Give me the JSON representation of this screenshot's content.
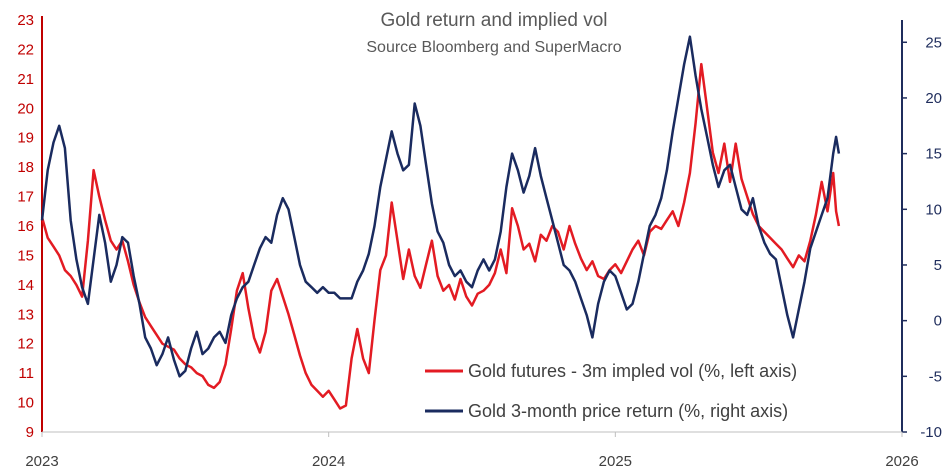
{
  "chart_data": {
    "type": "line",
    "title": "Gold return and implied vol",
    "subtitle": "Source Bloomberg and SuperMacro",
    "colors": {
      "vol": "#e31b23",
      "ret": "#1a2b5f",
      "left_axis": "#c00000",
      "right_axis": "#1f2d5c",
      "text": "#595959"
    },
    "x_axis": {
      "ticks": [
        "2023",
        "2024",
        "2025",
        "2026"
      ],
      "range": [
        2023.0,
        2026.0
      ]
    },
    "left_axis": {
      "ticks": [
        "9",
        "10",
        "11",
        "12",
        "13",
        "14",
        "15",
        "16",
        "17",
        "18",
        "19",
        "20",
        "21",
        "22",
        "23"
      ],
      "range": [
        9,
        23
      ]
    },
    "right_axis": {
      "ticks": [
        "-10",
        "-5",
        "0",
        "5",
        "10",
        "15",
        "20",
        "25"
      ],
      "range": [
        -10,
        27
      ]
    },
    "legend": [
      {
        "label": "Gold futures - 3m impled vol (%, left axis)",
        "color": "#e31b23"
      },
      {
        "label": "Gold 3-month price return (%, right axis)",
        "color": "#1a2b5f"
      }
    ],
    "legend_position": "bottom-right",
    "series": [
      {
        "name": "Gold futures - 3m impled vol (%, left axis)",
        "axis": "left",
        "points": [
          [
            2023.0,
            16.3
          ],
          [
            2023.02,
            15.6
          ],
          [
            2023.04,
            15.3
          ],
          [
            2023.06,
            15.0
          ],
          [
            2023.08,
            14.5
          ],
          [
            2023.1,
            14.3
          ],
          [
            2023.12,
            14.0
          ],
          [
            2023.14,
            13.6
          ],
          [
            2023.16,
            15.5
          ],
          [
            2023.18,
            17.9
          ],
          [
            2023.2,
            17.0
          ],
          [
            2023.22,
            16.2
          ],
          [
            2023.24,
            15.5
          ],
          [
            2023.26,
            15.2
          ],
          [
            2023.28,
            15.5
          ],
          [
            2023.3,
            14.8
          ],
          [
            2023.32,
            14.0
          ],
          [
            2023.34,
            13.4
          ],
          [
            2023.36,
            12.9
          ],
          [
            2023.38,
            12.6
          ],
          [
            2023.4,
            12.3
          ],
          [
            2023.42,
            12.0
          ],
          [
            2023.44,
            11.9
          ],
          [
            2023.46,
            11.8
          ],
          [
            2023.48,
            11.5
          ],
          [
            2023.5,
            11.3
          ],
          [
            2023.52,
            11.2
          ],
          [
            2023.54,
            11.0
          ],
          [
            2023.56,
            10.9
          ],
          [
            2023.58,
            10.6
          ],
          [
            2023.6,
            10.5
          ],
          [
            2023.62,
            10.7
          ],
          [
            2023.64,
            11.3
          ],
          [
            2023.66,
            12.5
          ],
          [
            2023.68,
            13.8
          ],
          [
            2023.7,
            14.4
          ],
          [
            2023.72,
            13.2
          ],
          [
            2023.74,
            12.2
          ],
          [
            2023.76,
            11.7
          ],
          [
            2023.78,
            12.4
          ],
          [
            2023.8,
            13.8
          ],
          [
            2023.82,
            14.2
          ],
          [
            2023.84,
            13.6
          ],
          [
            2023.86,
            13.0
          ],
          [
            2023.88,
            12.3
          ],
          [
            2023.9,
            11.6
          ],
          [
            2023.92,
            11.0
          ],
          [
            2023.94,
            10.6
          ],
          [
            2023.96,
            10.4
          ],
          [
            2023.98,
            10.2
          ],
          [
            2024.0,
            10.4
          ],
          [
            2024.02,
            10.1
          ],
          [
            2024.04,
            9.8
          ],
          [
            2024.06,
            9.9
          ],
          [
            2024.08,
            11.5
          ],
          [
            2024.1,
            12.5
          ],
          [
            2024.12,
            11.5
          ],
          [
            2024.14,
            11.0
          ],
          [
            2024.16,
            12.8
          ],
          [
            2024.18,
            14.5
          ],
          [
            2024.2,
            15.0
          ],
          [
            2024.22,
            16.8
          ],
          [
            2024.24,
            15.5
          ],
          [
            2024.26,
            14.2
          ],
          [
            2024.28,
            15.2
          ],
          [
            2024.3,
            14.3
          ],
          [
            2024.32,
            13.9
          ],
          [
            2024.34,
            14.7
          ],
          [
            2024.36,
            15.5
          ],
          [
            2024.38,
            14.3
          ],
          [
            2024.4,
            13.8
          ],
          [
            2024.42,
            14.0
          ],
          [
            2024.44,
            13.5
          ],
          [
            2024.46,
            14.2
          ],
          [
            2024.48,
            13.6
          ],
          [
            2024.5,
            13.3
          ],
          [
            2024.52,
            13.7
          ],
          [
            2024.54,
            13.8
          ],
          [
            2024.56,
            14.0
          ],
          [
            2024.58,
            14.4
          ],
          [
            2024.6,
            15.2
          ],
          [
            2024.62,
            14.4
          ],
          [
            2024.64,
            16.6
          ],
          [
            2024.66,
            16.0
          ],
          [
            2024.68,
            15.2
          ],
          [
            2024.7,
            15.4
          ],
          [
            2024.72,
            14.8
          ],
          [
            2024.74,
            15.7
          ],
          [
            2024.76,
            15.5
          ],
          [
            2024.78,
            16.0
          ],
          [
            2024.8,
            15.8
          ],
          [
            2024.82,
            15.2
          ],
          [
            2024.84,
            16.0
          ],
          [
            2024.86,
            15.4
          ],
          [
            2024.88,
            14.9
          ],
          [
            2024.9,
            14.5
          ],
          [
            2024.92,
            14.8
          ],
          [
            2024.94,
            14.3
          ],
          [
            2024.96,
            14.2
          ],
          [
            2024.98,
            14.5
          ],
          [
            2025.0,
            14.7
          ],
          [
            2025.02,
            14.4
          ],
          [
            2025.04,
            14.8
          ],
          [
            2025.06,
            15.2
          ],
          [
            2025.08,
            15.5
          ],
          [
            2025.1,
            15.0
          ],
          [
            2025.12,
            15.8
          ],
          [
            2025.14,
            16.0
          ],
          [
            2025.16,
            15.9
          ],
          [
            2025.18,
            16.2
          ],
          [
            2025.2,
            16.5
          ],
          [
            2025.22,
            16.0
          ],
          [
            2025.24,
            16.8
          ],
          [
            2025.26,
            17.8
          ],
          [
            2025.28,
            19.5
          ],
          [
            2025.3,
            21.5
          ],
          [
            2025.32,
            20.0
          ],
          [
            2025.34,
            18.5
          ],
          [
            2025.36,
            17.8
          ],
          [
            2025.38,
            18.8
          ],
          [
            2025.4,
            17.5
          ],
          [
            2025.42,
            18.8
          ],
          [
            2025.44,
            17.6
          ],
          [
            2025.46,
            17.0
          ],
          [
            2025.48,
            16.4
          ],
          [
            2025.5,
            16.0
          ],
          [
            2025.52,
            15.8
          ],
          [
            2025.54,
            15.6
          ],
          [
            2025.56,
            15.4
          ],
          [
            2025.58,
            15.2
          ],
          [
            2025.6,
            14.9
          ],
          [
            2025.62,
            14.6
          ],
          [
            2025.64,
            15.0
          ],
          [
            2025.66,
            14.8
          ],
          [
            2025.68,
            15.5
          ],
          [
            2025.7,
            16.4
          ],
          [
            2025.72,
            17.5
          ],
          [
            2025.74,
            16.5
          ],
          [
            2025.76,
            17.8
          ],
          [
            2025.77,
            16.5
          ],
          [
            2025.78,
            16.0
          ]
        ]
      },
      {
        "name": "Gold 3-month price return (%, right axis)",
        "axis": "right",
        "points": [
          [
            2023.0,
            9.0
          ],
          [
            2023.02,
            13.5
          ],
          [
            2023.04,
            16.0
          ],
          [
            2023.06,
            17.5
          ],
          [
            2023.08,
            15.5
          ],
          [
            2023.1,
            9.0
          ],
          [
            2023.12,
            5.5
          ],
          [
            2023.14,
            3.0
          ],
          [
            2023.16,
            1.5
          ],
          [
            2023.18,
            5.5
          ],
          [
            2023.2,
            9.5
          ],
          [
            2023.22,
            7.0
          ],
          [
            2023.24,
            3.5
          ],
          [
            2023.26,
            5.0
          ],
          [
            2023.28,
            7.5
          ],
          [
            2023.3,
            7.0
          ],
          [
            2023.32,
            4.0
          ],
          [
            2023.34,
            1.5
          ],
          [
            2023.36,
            -1.5
          ],
          [
            2023.38,
            -2.5
          ],
          [
            2023.4,
            -4.0
          ],
          [
            2023.42,
            -3.0
          ],
          [
            2023.44,
            -1.5
          ],
          [
            2023.46,
            -3.5
          ],
          [
            2023.48,
            -5.0
          ],
          [
            2023.5,
            -4.5
          ],
          [
            2023.52,
            -2.5
          ],
          [
            2023.54,
            -1.0
          ],
          [
            2023.56,
            -3.0
          ],
          [
            2023.58,
            -2.5
          ],
          [
            2023.6,
            -1.5
          ],
          [
            2023.62,
            -1.0
          ],
          [
            2023.64,
            -2.0
          ],
          [
            2023.66,
            0.5
          ],
          [
            2023.68,
            2.0
          ],
          [
            2023.7,
            3.0
          ],
          [
            2023.72,
            3.5
          ],
          [
            2023.74,
            5.0
          ],
          [
            2023.76,
            6.5
          ],
          [
            2023.78,
            7.5
          ],
          [
            2023.8,
            7.0
          ],
          [
            2023.82,
            9.5
          ],
          [
            2023.84,
            11.0
          ],
          [
            2023.86,
            10.0
          ],
          [
            2023.88,
            7.5
          ],
          [
            2023.9,
            5.0
          ],
          [
            2023.92,
            3.5
          ],
          [
            2023.94,
            3.0
          ],
          [
            2023.96,
            2.5
          ],
          [
            2023.98,
            3.0
          ],
          [
            2024.0,
            2.5
          ],
          [
            2024.02,
            2.5
          ],
          [
            2024.04,
            2.0
          ],
          [
            2024.06,
            2.0
          ],
          [
            2024.08,
            2.0
          ],
          [
            2024.1,
            3.5
          ],
          [
            2024.12,
            4.5
          ],
          [
            2024.14,
            6.0
          ],
          [
            2024.16,
            8.5
          ],
          [
            2024.18,
            12.0
          ],
          [
            2024.2,
            14.5
          ],
          [
            2024.22,
            17.0
          ],
          [
            2024.24,
            15.0
          ],
          [
            2024.26,
            13.5
          ],
          [
            2024.28,
            14.0
          ],
          [
            2024.3,
            19.5
          ],
          [
            2024.32,
            17.5
          ],
          [
            2024.34,
            14.0
          ],
          [
            2024.36,
            10.5
          ],
          [
            2024.38,
            8.0
          ],
          [
            2024.4,
            7.0
          ],
          [
            2024.42,
            5.0
          ],
          [
            2024.44,
            4.0
          ],
          [
            2024.46,
            4.5
          ],
          [
            2024.48,
            3.5
          ],
          [
            2024.5,
            3.0
          ],
          [
            2024.52,
            4.5
          ],
          [
            2024.54,
            5.5
          ],
          [
            2024.56,
            4.5
          ],
          [
            2024.58,
            5.5
          ],
          [
            2024.6,
            8.0
          ],
          [
            2024.62,
            12.0
          ],
          [
            2024.64,
            15.0
          ],
          [
            2024.66,
            13.5
          ],
          [
            2024.68,
            11.5
          ],
          [
            2024.7,
            13.0
          ],
          [
            2024.72,
            15.5
          ],
          [
            2024.74,
            13.0
          ],
          [
            2024.76,
            11.0
          ],
          [
            2024.78,
            9.0
          ],
          [
            2024.8,
            7.0
          ],
          [
            2024.82,
            5.0
          ],
          [
            2024.84,
            4.5
          ],
          [
            2024.86,
            3.5
          ],
          [
            2024.88,
            2.0
          ],
          [
            2024.9,
            0.5
          ],
          [
            2024.92,
            -1.5
          ],
          [
            2024.94,
            1.5
          ],
          [
            2024.96,
            3.5
          ],
          [
            2024.98,
            4.5
          ],
          [
            2025.0,
            4.0
          ],
          [
            2025.02,
            2.5
          ],
          [
            2025.04,
            1.0
          ],
          [
            2025.06,
            1.5
          ],
          [
            2025.08,
            3.5
          ],
          [
            2025.1,
            6.0
          ],
          [
            2025.12,
            8.5
          ],
          [
            2025.14,
            9.5
          ],
          [
            2025.16,
            11.0
          ],
          [
            2025.18,
            13.5
          ],
          [
            2025.2,
            17.0
          ],
          [
            2025.22,
            20.0
          ],
          [
            2025.24,
            23.0
          ],
          [
            2025.26,
            25.5
          ],
          [
            2025.28,
            22.0
          ],
          [
            2025.3,
            19.0
          ],
          [
            2025.32,
            16.5
          ],
          [
            2025.34,
            14.0
          ],
          [
            2025.36,
            12.0
          ],
          [
            2025.38,
            13.5
          ],
          [
            2025.4,
            14.0
          ],
          [
            2025.42,
            12.0
          ],
          [
            2025.44,
            10.0
          ],
          [
            2025.46,
            9.5
          ],
          [
            2025.48,
            11.0
          ],
          [
            2025.5,
            8.5
          ],
          [
            2025.52,
            7.0
          ],
          [
            2025.54,
            6.0
          ],
          [
            2025.56,
            5.5
          ],
          [
            2025.58,
            3.0
          ],
          [
            2025.6,
            0.5
          ],
          [
            2025.62,
            -1.5
          ],
          [
            2025.64,
            1.0
          ],
          [
            2025.66,
            3.5
          ],
          [
            2025.68,
            6.5
          ],
          [
            2025.7,
            8.0
          ],
          [
            2025.72,
            9.5
          ],
          [
            2025.74,
            11.0
          ],
          [
            2025.76,
            15.0
          ],
          [
            2025.77,
            16.5
          ],
          [
            2025.78,
            15.0
          ]
        ]
      }
    ]
  }
}
